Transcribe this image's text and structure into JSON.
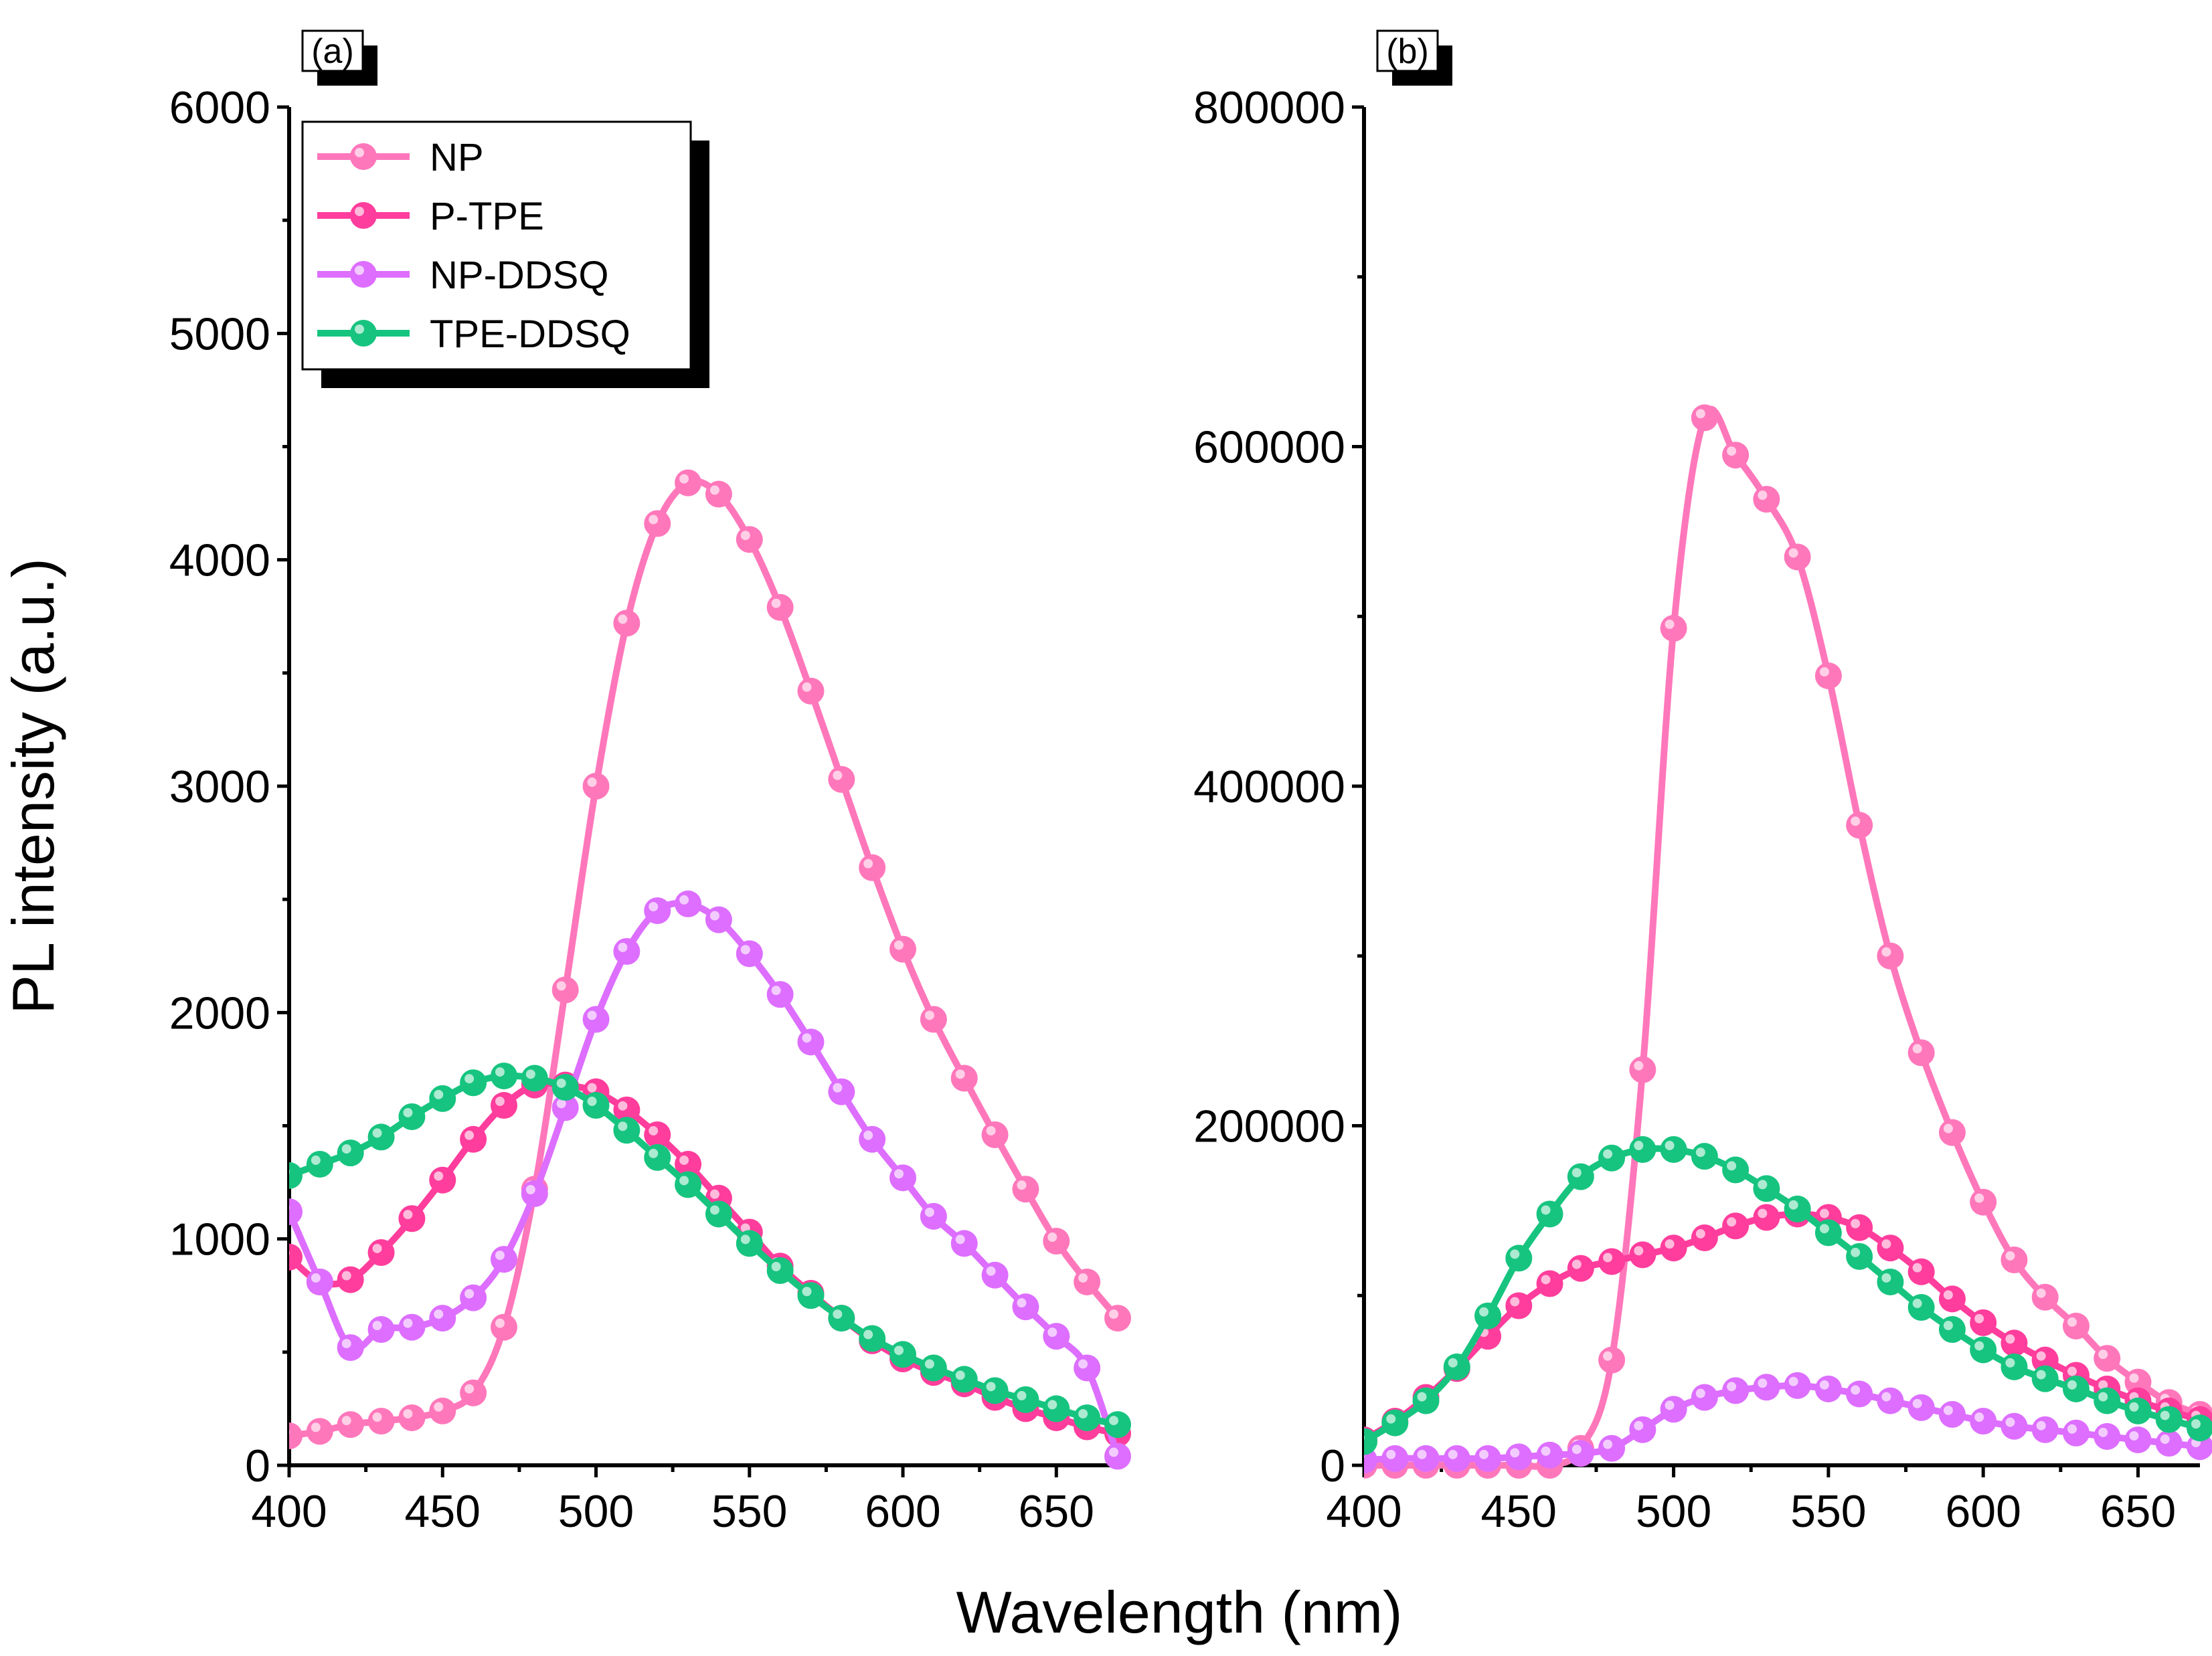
{
  "figure": {
    "xlabel": "Wavelength (nm)",
    "ylabel": "PL intensity (a.u.)"
  },
  "legend": [
    {
      "name": "NP",
      "color": "#ff77bb"
    },
    {
      "name": "P-TPE",
      "color": "#ff3d9c"
    },
    {
      "name": "NP-DDSQ",
      "color": "#dd6eff"
    },
    {
      "name": "TPE-DDSQ",
      "color": "#16c47f"
    }
  ],
  "chart_data": [
    {
      "type": "line",
      "panel_label": "(a)",
      "xlabel": "Wavelength (nm)",
      "ylabel": "PL intensity (a.u.)",
      "xlim": [
        400,
        670
      ],
      "ylim": [
        0,
        6000
      ],
      "xticks": [
        400,
        450,
        500,
        550,
        600,
        650
      ],
      "yticks": [
        0,
        1000,
        2000,
        3000,
        4000,
        5000,
        6000
      ],
      "x": [
        400,
        410,
        420,
        430,
        440,
        450,
        460,
        470,
        480,
        490,
        500,
        510,
        520,
        530,
        540,
        550,
        560,
        570,
        580,
        590,
        600,
        610,
        620,
        630,
        640,
        650,
        660,
        670
      ],
      "legend_position": "top-left",
      "series": [
        {
          "name": "NP",
          "color": "#ff77bb",
          "values": [
            130,
            150,
            180,
            195,
            210,
            240,
            320,
            610,
            1220,
            2100,
            3000,
            3720,
            4160,
            4340,
            4290,
            4090,
            3790,
            3420,
            3030,
            2640,
            2280,
            1970,
            1710,
            1460,
            1220,
            990,
            810,
            650
          ]
        },
        {
          "name": "P-TPE",
          "color": "#ff3d9c",
          "values": [
            920,
            810,
            820,
            940,
            1090,
            1260,
            1440,
            1590,
            1680,
            1680,
            1650,
            1570,
            1460,
            1330,
            1180,
            1030,
            880,
            760,
            650,
            550,
            470,
            410,
            360,
            300,
            250,
            210,
            170,
            140
          ]
        },
        {
          "name": "NP-DDSQ",
          "color": "#dd6eff",
          "values": [
            1120,
            810,
            520,
            600,
            610,
            650,
            740,
            910,
            1200,
            1580,
            1970,
            2270,
            2450,
            2480,
            2410,
            2260,
            2080,
            1870,
            1650,
            1440,
            1270,
            1100,
            980,
            840,
            700,
            570,
            430,
            40
          ]
        },
        {
          "name": "TPE-DDSQ",
          "color": "#16c47f",
          "values": [
            1280,
            1330,
            1380,
            1450,
            1540,
            1620,
            1690,
            1720,
            1710,
            1670,
            1590,
            1480,
            1360,
            1240,
            1110,
            980,
            860,
            750,
            650,
            560,
            490,
            430,
            380,
            330,
            290,
            250,
            210,
            180
          ]
        }
      ]
    },
    {
      "type": "line",
      "panel_label": "(b)",
      "xlabel": "Wavelength (nm)",
      "ylabel": "",
      "xlim": [
        400,
        670
      ],
      "ylim": [
        0,
        800000
      ],
      "xticks": [
        400,
        450,
        500,
        550,
        600,
        650
      ],
      "yticks": [
        0,
        200000,
        400000,
        600000,
        800000
      ],
      "x": [
        400,
        410,
        420,
        430,
        440,
        450,
        460,
        470,
        480,
        490,
        500,
        510,
        520,
        530,
        540,
        550,
        560,
        570,
        580,
        590,
        600,
        610,
        620,
        630,
        640,
        650,
        660,
        670
      ],
      "series": [
        {
          "name": "NP",
          "color": "#ff77bb",
          "values": [
            0,
            0,
            0,
            0,
            0,
            0,
            0,
            10000,
            62000,
            233000,
            493000,
            617000,
            595000,
            569000,
            535000,
            465000,
            377000,
            300000,
            243000,
            196000,
            155000,
            121000,
            99000,
            82000,
            63000,
            49000,
            37000,
            30000
          ]
        },
        {
          "name": "P-TPE",
          "color": "#ff3d9c",
          "values": [
            15000,
            26000,
            40000,
            57000,
            76000,
            94000,
            107000,
            116000,
            120000,
            124000,
            128000,
            134000,
            141000,
            146000,
            148000,
            146000,
            140000,
            128000,
            114000,
            98000,
            84000,
            72000,
            62000,
            53000,
            45000,
            38000,
            32000,
            27000
          ]
        },
        {
          "name": "NP-DDSQ",
          "color": "#dd6eff",
          "values": [
            3000,
            4000,
            4000,
            4000,
            4000,
            5000,
            6000,
            7000,
            10000,
            21000,
            33000,
            40000,
            44000,
            46000,
            47000,
            45000,
            42000,
            38000,
            34000,
            30000,
            26000,
            23000,
            21000,
            19000,
            17000,
            15000,
            13000,
            11000
          ]
        },
        {
          "name": "TPE-DDSQ",
          "color": "#16c47f",
          "values": [
            14000,
            25000,
            38000,
            58000,
            88000,
            122000,
            148000,
            170000,
            181000,
            186000,
            186000,
            182000,
            174000,
            163000,
            151000,
            137000,
            123000,
            108000,
            93000,
            80000,
            68000,
            58000,
            51000,
            45000,
            38000,
            32000,
            27000,
            22000
          ]
        }
      ]
    }
  ]
}
